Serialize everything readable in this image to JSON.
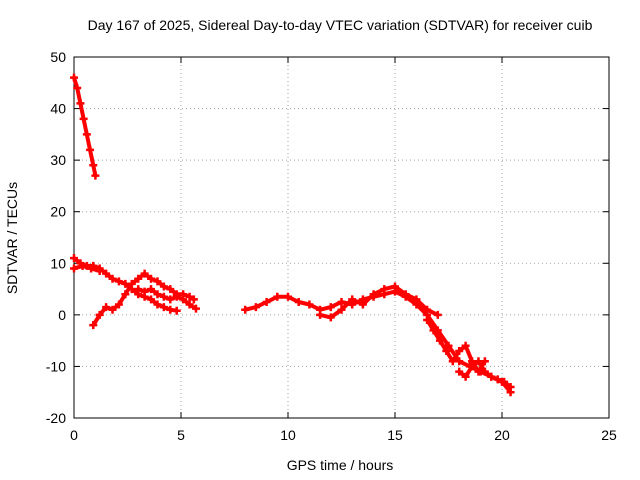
{
  "chart_data": {
    "type": "line",
    "title": "Day 167 of 2025, Sidereal Day-to-day VTEC variation (SDTVAR) for receiver cuib",
    "xlabel": "GPS time / hours",
    "ylabel": "SDTVAR / TECUs",
    "xlim": [
      0,
      25
    ],
    "ylim": [
      -20,
      50
    ],
    "xticks": [
      0,
      5,
      10,
      15,
      20,
      25
    ],
    "yticks": [
      -20,
      -10,
      0,
      10,
      20,
      30,
      40,
      50
    ],
    "grid": true,
    "legend": "none",
    "series_color": "#ff0000",
    "series": [
      {
        "name": "track-1",
        "x": [
          0.0,
          0.15,
          0.3,
          0.45,
          0.6,
          0.75,
          0.9,
          1.0
        ],
        "y": [
          46,
          44,
          41,
          38,
          35,
          32,
          29,
          27
        ]
      },
      {
        "name": "track-2",
        "x": [
          0.0,
          0.3,
          0.6,
          0.9,
          1.2,
          1.5,
          1.8,
          2.1,
          2.4,
          2.7,
          3.0,
          3.3,
          3.6,
          3.9,
          4.2,
          4.5,
          4.8
        ],
        "y": [
          11,
          10,
          9.5,
          9.5,
          9,
          8,
          7,
          6.5,
          6,
          5,
          4,
          3.5,
          3,
          2,
          1.5,
          1,
          0.8
        ]
      },
      {
        "name": "track-3",
        "x": [
          0.0,
          0.4,
          0.8,
          1.2
        ],
        "y": [
          9,
          9.5,
          9,
          8.5
        ]
      },
      {
        "name": "track-4",
        "x": [
          0.9,
          1.2,
          1.5,
          1.8,
          2.1,
          2.4,
          2.7,
          3.0,
          3.3,
          3.6,
          3.9,
          4.2,
          4.5,
          4.8,
          5.1,
          5.4,
          5.6
        ],
        "y": [
          -2,
          0,
          1.5,
          1,
          2,
          4,
          6,
          7,
          8,
          7,
          6.5,
          5.5,
          5,
          4,
          4,
          3.5,
          3
        ]
      },
      {
        "name": "track-5",
        "x": [
          3.0,
          3.3,
          3.6,
          3.9,
          4.2,
          4.5,
          4.8,
          5.1,
          5.4,
          5.7
        ],
        "y": [
          5,
          4.5,
          5,
          4,
          3.5,
          3,
          3.5,
          3,
          2,
          1.2
        ]
      },
      {
        "name": "track-6",
        "x": [
          8.0,
          8.5,
          9.0,
          9.5,
          10.0,
          10.5,
          11.0,
          11.5,
          12.0,
          12.5,
          13.0,
          13.5,
          14.0,
          14.5,
          15.0,
          15.5,
          16.0,
          16.5,
          17.0,
          17.5,
          18.0,
          18.5,
          19.0,
          19.5,
          20.0,
          20.4
        ],
        "y": [
          1,
          1.5,
          2.5,
          3.5,
          3.5,
          2.5,
          2,
          1,
          1.5,
          2.5,
          2,
          3,
          3.5,
          4,
          4.5,
          3.5,
          2,
          0,
          -3,
          -6,
          -9,
          -10,
          -11,
          -12,
          -13,
          -15
        ]
      },
      {
        "name": "track-7",
        "x": [
          11.5,
          12.0,
          12.5,
          13.0,
          13.5,
          14.0,
          14.5,
          15.0,
          15.5,
          16.0,
          16.5,
          17.0
        ],
        "y": [
          0,
          -0.5,
          1,
          3,
          2,
          4,
          5,
          5.5,
          4,
          3,
          1,
          0
        ]
      },
      {
        "name": "track-8",
        "x": [
          16.5,
          16.8,
          17.1,
          17.4,
          17.7,
          18.0,
          18.3,
          18.6,
          18.9,
          19.2
        ],
        "y": [
          -1,
          -3,
          -5,
          -7,
          -9,
          -7,
          -6,
          -9,
          -11,
          -9
        ]
      },
      {
        "name": "track-9",
        "x": [
          18.0,
          18.3,
          18.6,
          18.9,
          19.2,
          19.5,
          19.8,
          20.1,
          20.4
        ],
        "y": [
          -11,
          -12,
          -10,
          -9,
          -11,
          -12,
          -12.5,
          -13,
          -14
        ]
      }
    ]
  }
}
